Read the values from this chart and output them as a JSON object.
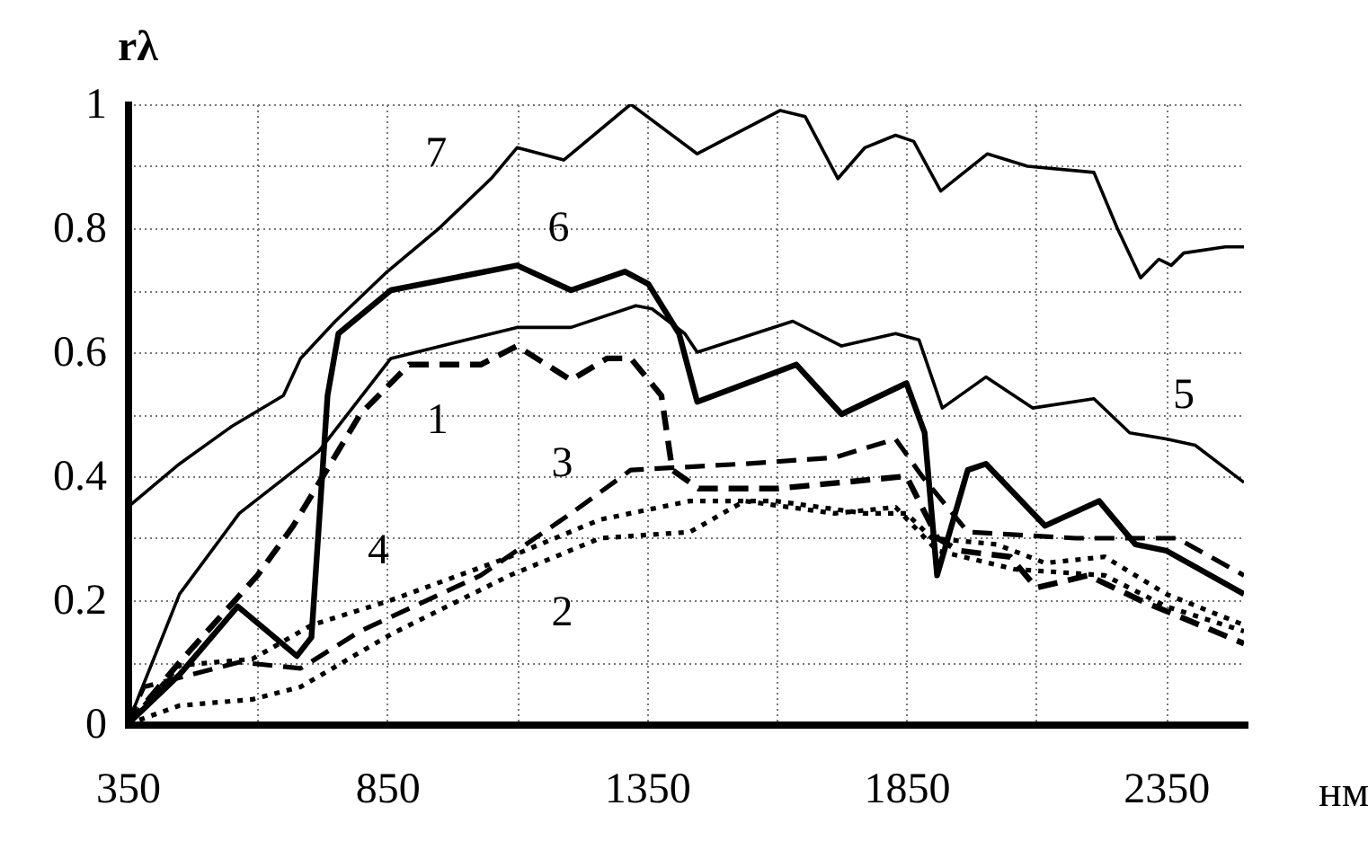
{
  "chart_data": {
    "type": "line",
    "xlabel": "нм",
    "ylabel": "rλ",
    "xlim": [
      350,
      2500
    ],
    "ylim": [
      0,
      1
    ],
    "xticks": [
      350,
      {
        "value": 600,
        "label": null
      },
      850,
      {
        "value": 1100,
        "label": null
      },
      1350,
      {
        "value": 1600,
        "label": null
      },
      1850,
      {
        "value": 2100,
        "label": null
      },
      2350
    ],
    "yticks": [
      0,
      {
        "value": 0.1,
        "label": null
      },
      0.2,
      {
        "value": 0.3,
        "label": null
      },
      0.4,
      {
        "value": 0.5,
        "label": null
      },
      0.6,
      {
        "value": 0.7,
        "label": null
      },
      0.8,
      {
        "value": 0.9,
        "label": null
      },
      1
    ],
    "grid": true,
    "legend": false,
    "marker": "none",
    "series": [
      {
        "name": "1",
        "color": "#000000",
        "line_style": "dashed",
        "x": [
          350,
          450,
          600,
          669,
          798,
          892,
          1030,
          1100,
          1204,
          1273,
          1319,
          1378,
          1399,
          1450,
          1600,
          1850,
          1910,
          1950,
          2050,
          2100,
          2200,
          2300,
          2500
        ],
        "values": [
          0,
          0.1,
          0.24,
          0.32,
          0.5,
          0.58,
          0.58,
          0.61,
          0.555,
          0.59,
          0.59,
          0.53,
          0.41,
          0.38,
          0.38,
          0.4,
          0.3,
          0.28,
          0.27,
          0.22,
          0.24,
          0.2,
          0.13
        ]
      },
      {
        "name": "2",
        "color": "#000000",
        "line_style": "dotted",
        "x": [
          350,
          450,
          590,
          683,
          857,
          1086,
          1260,
          1433,
          1538,
          1711,
          1829,
          1909,
          2058,
          2232,
          2350,
          2500
        ],
        "values": [
          0,
          0.03,
          0.04,
          0.06,
          0.145,
          0.24,
          0.3,
          0.31,
          0.36,
          0.34,
          0.35,
          0.28,
          0.25,
          0.24,
          0.19,
          0.15
        ]
      },
      {
        "name": "3",
        "color": "#000000",
        "line_style": "dashed",
        "x": [
          350,
          381,
          565,
          683,
          798,
          1030,
          1204,
          1319,
          1538,
          1711,
          1829,
          1880,
          1968,
          2176,
          2371,
          2500
        ],
        "values": [
          0,
          0.06,
          0.1,
          0.09,
          0.15,
          0.24,
          0.34,
          0.41,
          0.42,
          0.43,
          0.46,
          0.4,
          0.31,
          0.3,
          0.3,
          0.24
        ]
      },
      {
        "name": "4",
        "color": "#000000",
        "line_style": "dotted",
        "x": [
          350,
          450,
          590,
          705,
          857,
          1086,
          1260,
          1433,
          1597,
          1770,
          1850,
          1899,
          2024,
          2117,
          2232,
          2350,
          2500
        ],
        "values": [
          0,
          0.095,
          0.105,
          0.16,
          0.2,
          0.27,
          0.33,
          0.36,
          0.36,
          0.34,
          0.34,
          0.3,
          0.29,
          0.26,
          0.27,
          0.21,
          0.16
        ]
      },
      {
        "name": "5",
        "color": "#000000",
        "line_style": "solid",
        "x": [
          350,
          450,
          565,
          718,
          857,
          1100,
          1204,
          1329,
          1360,
          1423,
          1447,
          1631,
          1725,
          1829,
          1874,
          1919,
          2003,
          2093,
          2211,
          2280,
          2350,
          2406,
          2500
        ],
        "values": [
          0,
          0.21,
          0.34,
          0.44,
          0.59,
          0.64,
          0.64,
          0.675,
          0.67,
          0.63,
          0.6,
          0.65,
          0.61,
          0.63,
          0.62,
          0.51,
          0.56,
          0.51,
          0.525,
          0.47,
          0.46,
          0.45,
          0.39
        ]
      },
      {
        "name": "6",
        "color": "#000000",
        "line_style": "solid",
        "x": [
          350,
          450,
          562,
          676,
          704,
          735,
          756,
          857,
          1100,
          1204,
          1308,
          1353,
          1412,
          1447,
          1638,
          1725,
          1850,
          1885,
          1909,
          1968,
          2003,
          2117,
          2221,
          2291,
          2350,
          2500
        ],
        "values": [
          0,
          0.08,
          0.19,
          0.11,
          0.14,
          0.53,
          0.63,
          0.7,
          0.74,
          0.7,
          0.73,
          0.71,
          0.63,
          0.52,
          0.58,
          0.5,
          0.55,
          0.47,
          0.24,
          0.41,
          0.42,
          0.32,
          0.36,
          0.29,
          0.28,
          0.21
        ]
      },
      {
        "name": "7",
        "color": "#000000",
        "line_style": "solid",
        "x": [
          350,
          450,
          550,
          650,
          683,
          750,
          850,
          950,
          1050,
          1100,
          1190,
          1319,
          1447,
          1607,
          1655,
          1718,
          1770,
          1829,
          1864,
          1916,
          2006,
          2083,
          2211,
          2256,
          2301,
          2336,
          2360,
          2384,
          2464,
          2500
        ],
        "values": [
          0.35,
          0.42,
          0.48,
          0.53,
          0.59,
          0.65,
          0.73,
          0.8,
          0.88,
          0.93,
          0.91,
          1,
          0.92,
          0.99,
          0.98,
          0.88,
          0.93,
          0.95,
          0.94,
          0.86,
          0.92,
          0.9,
          0.89,
          0.8,
          0.72,
          0.75,
          0.74,
          0.76,
          0.77,
          0.77
        ]
      }
    ]
  }
}
